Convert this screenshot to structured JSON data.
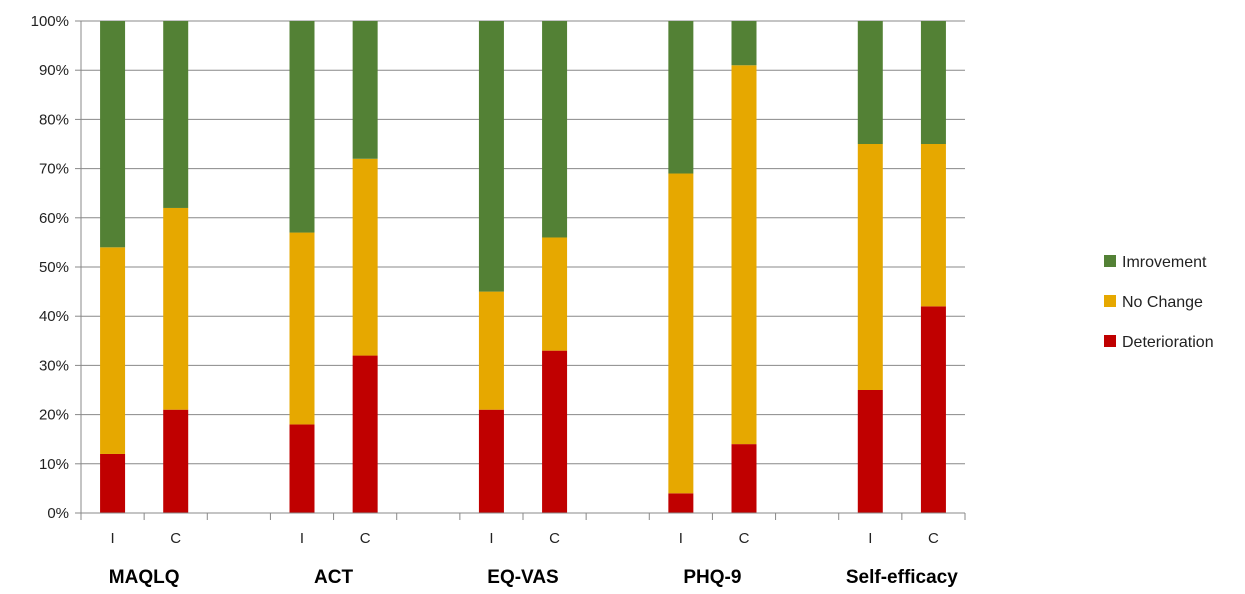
{
  "chart_data": {
    "type": "bar",
    "stacked": "percent",
    "title": "",
    "xlabel": "",
    "ylabel": "",
    "ylim": [
      0,
      100
    ],
    "y_ticks": [
      "0%",
      "10%",
      "20%",
      "30%",
      "40%",
      "50%",
      "60%",
      "70%",
      "80%",
      "90%",
      "100%"
    ],
    "grid": true,
    "legend_position": "right",
    "groups": [
      {
        "label": "MAQLQ",
        "bars": [
          {
            "label": "I",
            "values": [
              12,
              42,
              46
            ]
          },
          {
            "label": "C",
            "values": [
              21,
              41,
              38
            ]
          }
        ]
      },
      {
        "label": "ACT",
        "bars": [
          {
            "label": "I",
            "values": [
              18,
              39,
              43
            ]
          },
          {
            "label": "C",
            "values": [
              32,
              40,
              28
            ]
          }
        ]
      },
      {
        "label": "EQ-VAS",
        "bars": [
          {
            "label": "I",
            "values": [
              21,
              24,
              55
            ]
          },
          {
            "label": "C",
            "values": [
              33,
              23,
              44
            ]
          }
        ]
      },
      {
        "label": "PHQ-9",
        "bars": [
          {
            "label": "I",
            "values": [
              4,
              65,
              31
            ]
          },
          {
            "label": "C",
            "values": [
              14,
              77,
              9
            ]
          }
        ]
      },
      {
        "label": "Self-efficacy",
        "bars": [
          {
            "label": "I",
            "values": [
              25,
              50,
              25
            ]
          },
          {
            "label": "C",
            "values": [
              42,
              33,
              25
            ]
          }
        ]
      }
    ],
    "series": [
      {
        "name": "Deterioration",
        "color": "#c00000"
      },
      {
        "name": "No Change",
        "color": "#e6a800"
      },
      {
        "name": "Imrovement",
        "color": "#538135"
      }
    ],
    "legend_order": [
      "Imrovement",
      "No Change",
      "Deterioration"
    ]
  }
}
